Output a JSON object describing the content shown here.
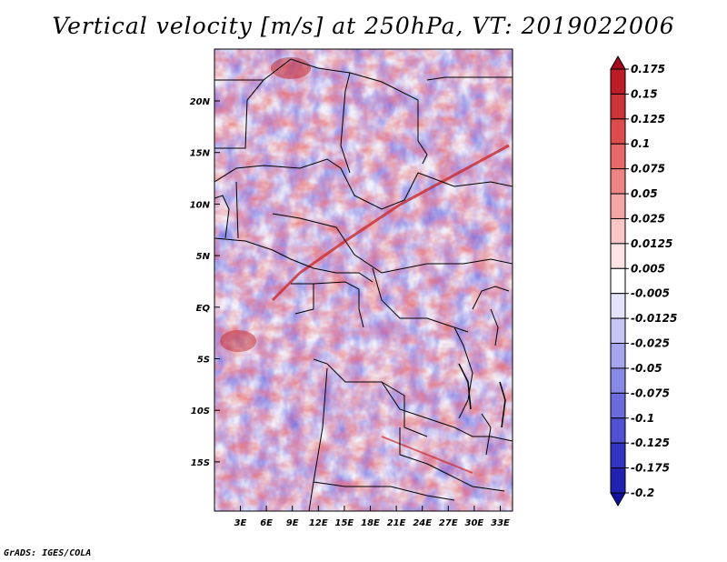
{
  "chart_data": {
    "type": "heatmap",
    "title": "Vertical velocity [m/s] at 250hPa, VT: 2019022006",
    "variable": "Vertical velocity",
    "units": "m/s",
    "level": "250hPa",
    "valid_time": "2019022006",
    "xlabel": "",
    "ylabel": "",
    "x_ticks": [
      "3E",
      "6E",
      "9E",
      "12E",
      "15E",
      "18E",
      "21E",
      "24E",
      "27E",
      "30E",
      "33E"
    ],
    "y_ticks": [
      "20N",
      "15N",
      "10N",
      "5N",
      "EQ",
      "5S",
      "10S",
      "15S"
    ],
    "colorbar": {
      "levels": [
        "0.175",
        "0.15",
        "0.125",
        "0.1",
        "0.075",
        "0.05",
        "0.025",
        "0.0125",
        "0.005",
        "-0.005",
        "-0.0125",
        "-0.025",
        "-0.05",
        "-0.075",
        "-0.1",
        "-0.125",
        "-0.175",
        "-0.2"
      ],
      "colors": [
        "#a50a1a",
        "#bb1c26",
        "#cc3336",
        "#dc4c4c",
        "#e56767",
        "#ee8585",
        "#f4a5a5",
        "#f9c6c6",
        "#fde3e3",
        "#ffffff",
        "#e3e3fc",
        "#c6c6f6",
        "#a6a6ee",
        "#8888e6",
        "#6b6bdc",
        "#5050d0",
        "#3434c2",
        "#2222b0",
        "#1010a0"
      ]
    },
    "grid": false
  },
  "footer": "GrADS: IGES/COLA"
}
